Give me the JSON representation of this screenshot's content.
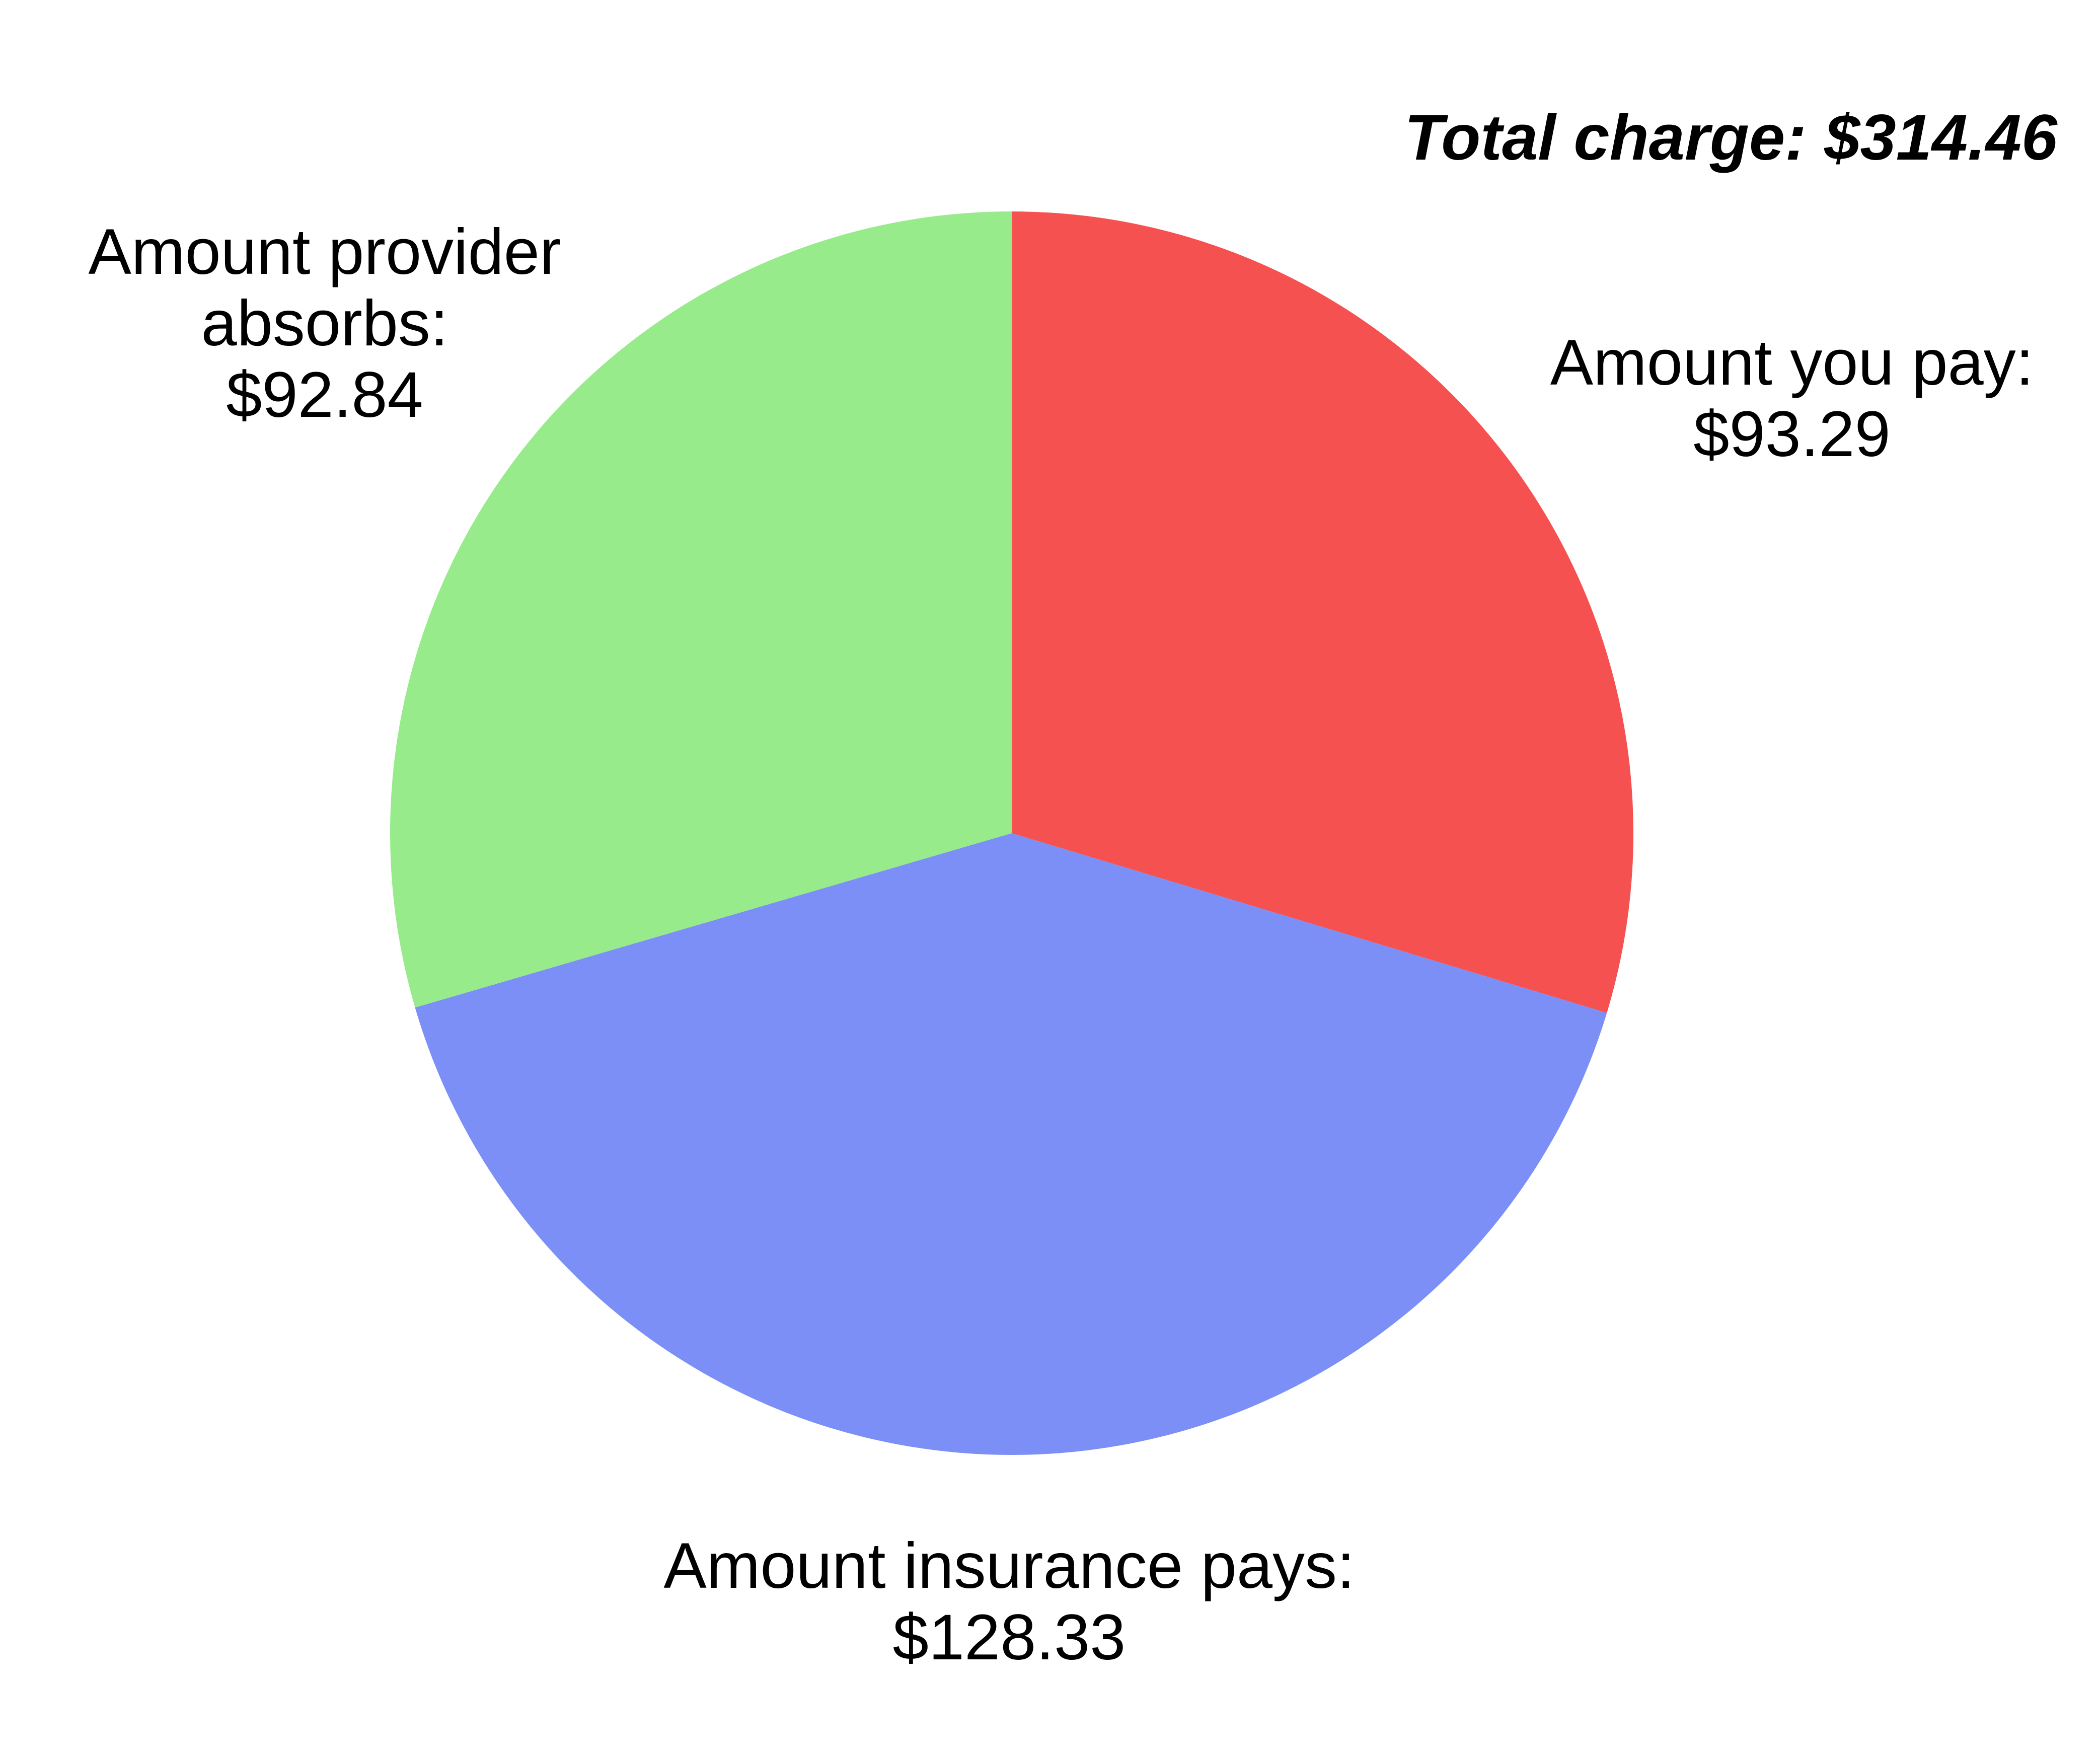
{
  "chart_data": {
    "type": "pie",
    "title": "Total charge: $314.46",
    "total": 314.46,
    "start_angle_deg": 0,
    "direction": "clockwise",
    "slices": [
      {
        "name": "Amount you pay",
        "label": "Amount you pay:",
        "value": 93.29,
        "value_label": "$93.29",
        "color": "#f65151"
      },
      {
        "name": "Amount insurance pays",
        "label": "Amount insurance pays:",
        "value": 128.33,
        "value_label": "$128.33",
        "color": "#7b8ff6"
      },
      {
        "name": "Amount provider absorbs",
        "label_line1": "Amount provider",
        "label_line2": "absorbs:",
        "value": 92.84,
        "value_label": "$92.84",
        "color": "#97eb8a"
      }
    ]
  }
}
